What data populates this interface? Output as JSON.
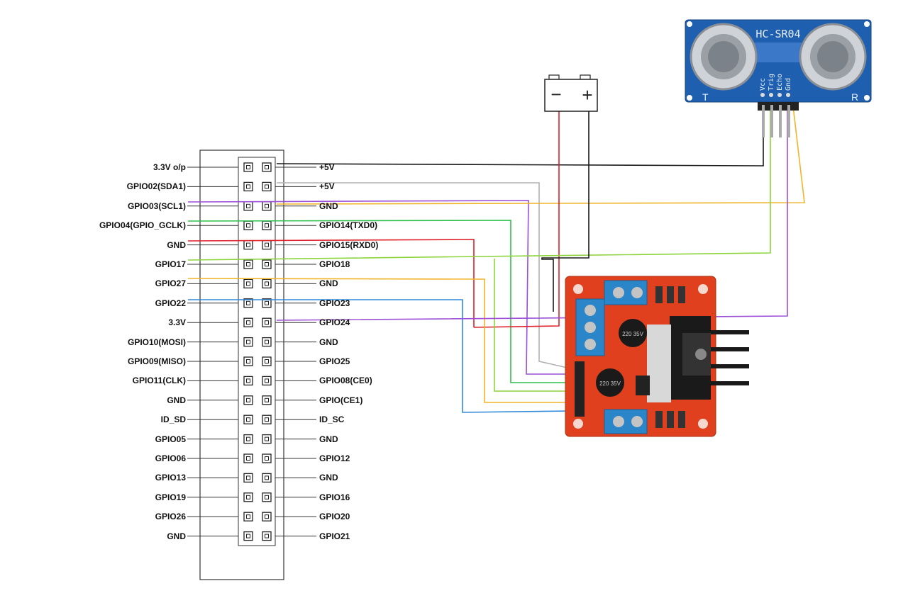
{
  "header": {
    "left_pins": [
      "3.3V o/p",
      "GPIO02(SDA1)",
      "GPIO03(SCL1)",
      "GPIO04(GPIO_GCLK)",
      "GND",
      "GPIO17",
      "GPIO27",
      "GPIO22",
      "3.3V",
      "GPIO10(MOSI)",
      "GPIO09(MISO)",
      "GPIO11(CLK)",
      "GND",
      "ID_SD",
      "GPIO05",
      "GPIO06",
      "GPIO13",
      "GPIO19",
      "GPIO26",
      "GND"
    ],
    "right_pins": [
      "+5V",
      "+5V",
      "GND",
      "GPIO14(TXD0)",
      "GPIO15(RXD0)",
      "GPIO18",
      "GND",
      "GPIO23",
      "GPIO24",
      "GND",
      "GPIO25",
      "GPIO08(CE0)",
      "GPIO(CE1)",
      "ID_SC",
      "GND",
      "GPIO12",
      "GND",
      "GPIO16",
      "GPIO20",
      "GPIO21"
    ]
  },
  "battery": {
    "minus": "−",
    "plus": "+"
  },
  "sensor": {
    "model": "HC-SR04",
    "transmitter": "T",
    "receiver": "R",
    "pins": [
      "Vcc",
      "Trig",
      "Echo",
      "Gnd"
    ]
  },
  "driver": {
    "capacitor_1": "220 35V",
    "capacitor_2": "220 35V"
  },
  "wire_colors": {
    "black": "#1a1a1a",
    "gray": "#b0b0b0",
    "purple": "#9b4fd6",
    "yellow": "#f0b429",
    "green": "#2ec04a",
    "red": "#e0202a",
    "lime": "#8cd43a",
    "blue": "#2f88d8",
    "board": "#e0401e",
    "sensor_board": "#1f5fb0",
    "terminal": "#2a86c8"
  }
}
